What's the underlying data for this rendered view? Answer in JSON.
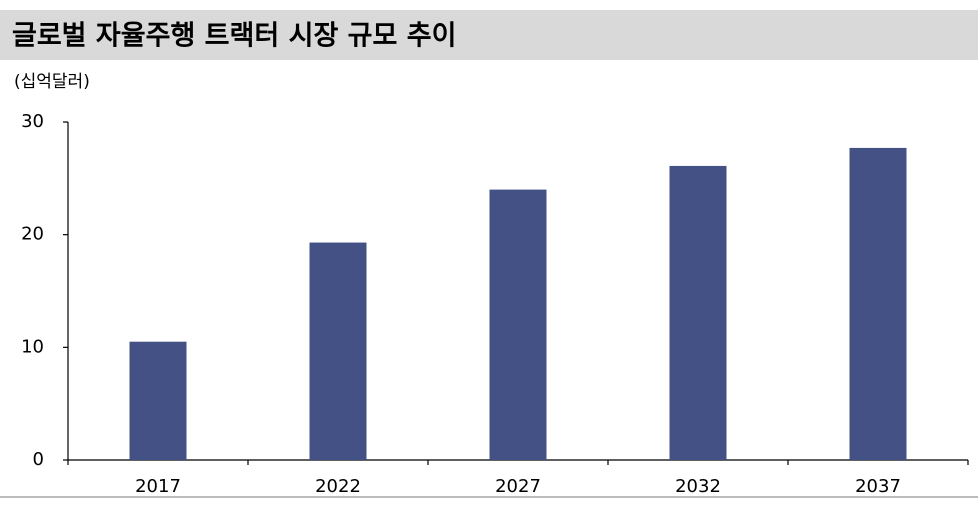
{
  "chart_data": {
    "type": "bar",
    "title": "글로벌 자율주행 트랙터 시장 규모 추이",
    "y_label": "(십억달러)",
    "categories": [
      "2017",
      "2022",
      "2027",
      "2032",
      "2037"
    ],
    "values": [
      10.5,
      19.3,
      24.0,
      26.1,
      27.7
    ],
    "color": "#435184",
    "ylim": [
      0,
      30
    ],
    "yticks": [
      0,
      10,
      20,
      30
    ],
    "grid": false
  }
}
